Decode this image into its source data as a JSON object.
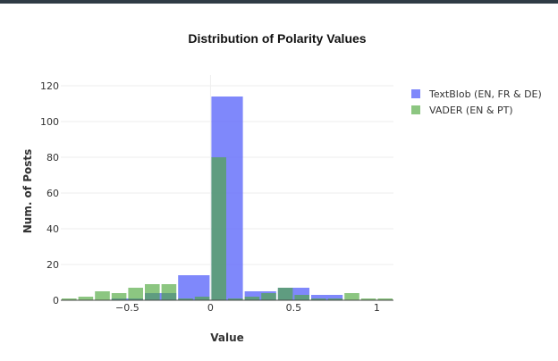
{
  "chart_data": {
    "type": "bar",
    "title": "Distribution of Polarity Values",
    "xlabel": "Value",
    "ylabel": "Num. of Posts",
    "xlim": [
      -0.9,
      1.1
    ],
    "ylim": [
      0,
      126
    ],
    "x_ticks": [
      {
        "value": -0.5,
        "label": "−0.5"
      },
      {
        "value": 0,
        "label": "0"
      },
      {
        "value": 0.5,
        "label": "0.5"
      },
      {
        "value": 1,
        "label": "1"
      }
    ],
    "y_ticks": [
      {
        "value": 0,
        "label": "0"
      },
      {
        "value": 20,
        "label": "20"
      },
      {
        "value": 40,
        "label": "40"
      },
      {
        "value": 60,
        "label": "60"
      },
      {
        "value": 80,
        "label": "80"
      },
      {
        "value": 100,
        "label": "100"
      },
      {
        "value": 120,
        "label": "120"
      }
    ],
    "grid": true,
    "legend_position": "top-right",
    "series": [
      {
        "name": "TextBlob (EN, FR & DE)",
        "color": "#636efa",
        "bins": [
          {
            "x0": -0.6,
            "x1": -0.4,
            "count": 1
          },
          {
            "x0": -0.4,
            "x1": -0.2,
            "count": 4
          },
          {
            "x0": -0.2,
            "x1": 0.0,
            "count": 14
          },
          {
            "x0": 0.0,
            "x1": 0.2,
            "count": 114
          },
          {
            "x0": 0.2,
            "x1": 0.4,
            "count": 5
          },
          {
            "x0": 0.4,
            "x1": 0.6,
            "count": 7
          },
          {
            "x0": 0.6,
            "x1": 0.8,
            "count": 3
          },
          {
            "x0": 0.8,
            "x1": 1.0,
            "count": 0
          }
        ]
      },
      {
        "name": "VADER (EN & PT)",
        "color": "#4fa83d",
        "bins": [
          {
            "x0": -0.9,
            "x1": -0.8,
            "count": 1
          },
          {
            "x0": -0.8,
            "x1": -0.7,
            "count": 2
          },
          {
            "x0": -0.7,
            "x1": -0.6,
            "count": 5
          },
          {
            "x0": -0.6,
            "x1": -0.5,
            "count": 4
          },
          {
            "x0": -0.5,
            "x1": -0.4,
            "count": 7
          },
          {
            "x0": -0.4,
            "x1": -0.3,
            "count": 9
          },
          {
            "x0": -0.3,
            "x1": -0.2,
            "count": 9
          },
          {
            "x0": -0.2,
            "x1": -0.1,
            "count": 1
          },
          {
            "x0": -0.1,
            "x1": 0.0,
            "count": 2
          },
          {
            "x0": 0.0,
            "x1": 0.1,
            "count": 80
          },
          {
            "x0": 0.1,
            "x1": 0.2,
            "count": 1
          },
          {
            "x0": 0.2,
            "x1": 0.3,
            "count": 2
          },
          {
            "x0": 0.3,
            "x1": 0.4,
            "count": 4
          },
          {
            "x0": 0.4,
            "x1": 0.5,
            "count": 7
          },
          {
            "x0": 0.5,
            "x1": 0.6,
            "count": 3
          },
          {
            "x0": 0.6,
            "x1": 0.7,
            "count": 1
          },
          {
            "x0": 0.7,
            "x1": 0.8,
            "count": 1
          },
          {
            "x0": 0.8,
            "x1": 0.9,
            "count": 4
          },
          {
            "x0": 0.9,
            "x1": 1.0,
            "count": 1
          },
          {
            "x0": 1.0,
            "x1": 1.1,
            "count": 1
          }
        ]
      }
    ]
  }
}
